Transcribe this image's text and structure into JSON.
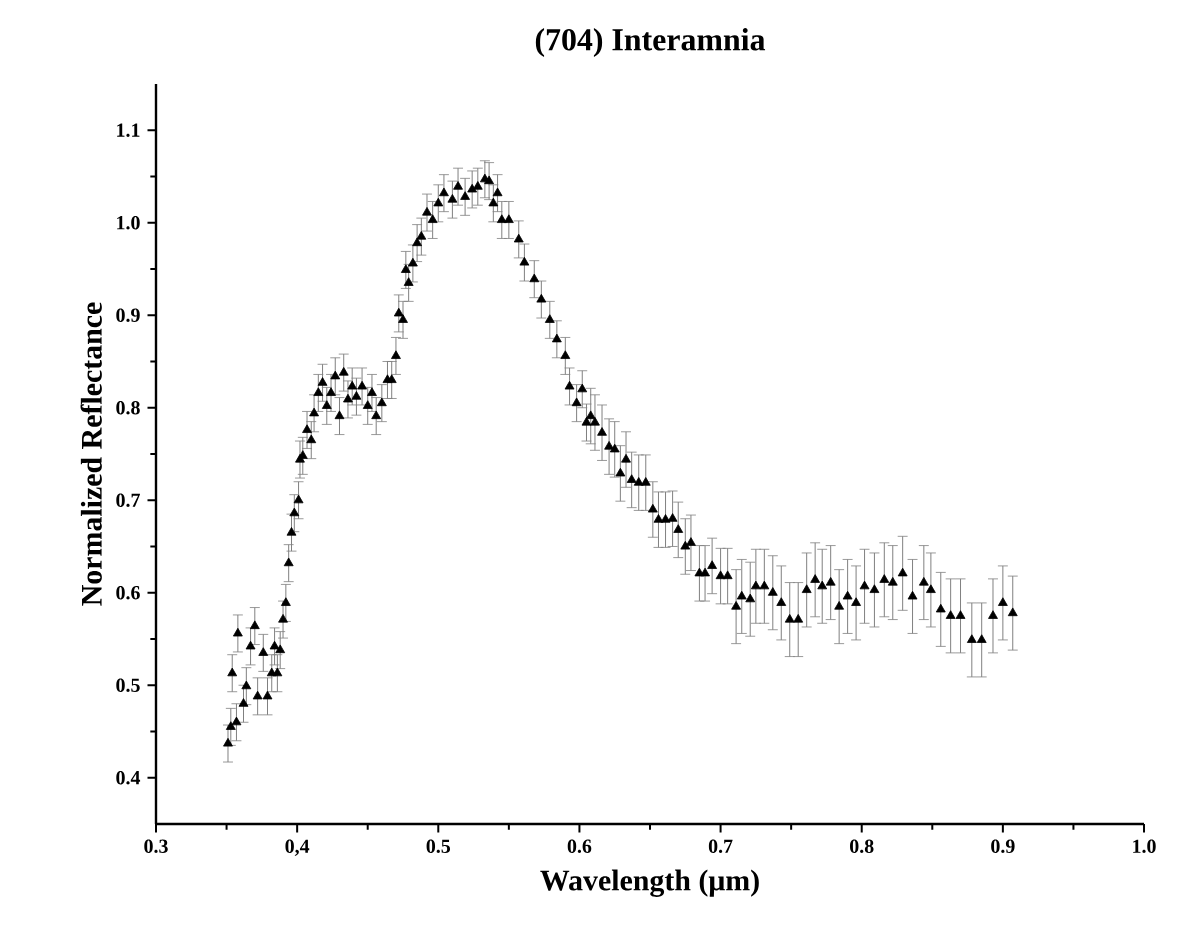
{
  "chart_data": {
    "type": "scatter",
    "title": "(704) Interamnia",
    "xlabel": "Wavelength (μm)",
    "ylabel": "Normalized Reflectance",
    "xlim": [
      0.3,
      1.0
    ],
    "ylim": [
      0.35,
      1.15
    ],
    "xticks": [
      0.3,
      {
        "value": 0.4,
        "label": "0,4"
      },
      0.5,
      0.6,
      0.7,
      0.8,
      0.9,
      {
        "value": 1,
        "label": "1.0"
      }
    ],
    "yticks": [
      0.4,
      0.5,
      0.6,
      0.7,
      0.8,
      0.9,
      {
        "value": 1,
        "label": "1.0"
      },
      1.1
    ],
    "marker": "triangle",
    "series": [
      {
        "color": "#000000",
        "x": [
          0.351,
          0.353,
          0.357,
          0.354,
          0.358,
          0.362,
          0.364,
          0.367,
          0.37,
          0.372,
          0.376,
          0.379,
          0.382,
          0.384,
          0.386,
          0.388,
          0.39,
          0.392,
          0.394,
          0.396,
          0.398,
          0.401,
          0.402,
          0.404,
          0.407,
          0.41,
          0.412,
          0.415,
          0.418,
          0.421,
          0.424,
          0.427,
          0.43,
          0.433,
          0.436,
          0.439,
          0.442,
          0.446,
          0.45,
          0.453,
          0.456,
          0.46,
          0.464,
          0.467,
          0.47,
          0.472,
          0.475,
          0.477,
          0.479,
          0.482,
          0.485,
          0.488,
          0.492,
          0.496,
          0.5,
          0.504,
          0.51,
          0.514,
          0.519,
          0.524,
          0.528,
          0.533,
          0.536,
          0.539,
          0.542,
          0.545,
          0.55,
          0.557,
          0.561,
          0.568,
          0.573,
          0.579,
          0.584,
          0.59,
          0.593,
          0.598,
          0.602,
          0.605,
          0.608,
          0.611,
          0.616,
          0.621,
          0.625,
          0.629,
          0.633,
          0.637,
          0.642,
          0.647,
          0.652,
          0.656,
          0.661,
          0.666,
          0.67,
          0.675,
          0.679,
          0.685,
          0.689,
          0.694,
          0.7,
          0.705,
          0.711,
          0.715,
          0.721,
          0.725,
          0.731,
          0.737,
          0.743,
          0.749,
          0.755,
          0.761,
          0.767,
          0.772,
          0.778,
          0.784,
          0.79,
          0.796,
          0.802,
          0.809,
          0.816,
          0.822,
          0.829,
          0.836,
          0.844,
          0.849,
          0.856,
          0.863,
          0.87,
          0.878,
          0.885,
          0.893,
          0.9,
          0.907
        ],
        "values": [
          0.437,
          0.455,
          0.46,
          0.513,
          0.556,
          0.48,
          0.499,
          0.542,
          0.564,
          0.488,
          0.535,
          0.488,
          0.513,
          0.542,
          0.513,
          0.538,
          0.571,
          0.589,
          0.632,
          0.665,
          0.686,
          0.7,
          0.744,
          0.748,
          0.776,
          0.765,
          0.794,
          0.816,
          0.827,
          0.802,
          0.816,
          0.834,
          0.791,
          0.838,
          0.809,
          0.823,
          0.812,
          0.823,
          0.802,
          0.816,
          0.791,
          0.805,
          0.83,
          0.83,
          0.856,
          0.902,
          0.895,
          0.949,
          0.935,
          0.956,
          0.978,
          0.985,
          1.011,
          1.003,
          1.021,
          1.032,
          1.025,
          1.039,
          1.028,
          1.036,
          1.039,
          1.047,
          1.045,
          1.021,
          1.032,
          1.003,
          1.003,
          0.982,
          0.957,
          0.939,
          0.917,
          0.895,
          0.874,
          0.856,
          0.823,
          0.805,
          0.82,
          0.784,
          0.791,
          0.784,
          0.773,
          0.758,
          0.755,
          0.729,
          0.744,
          0.722,
          0.719,
          0.719,
          0.69,
          0.679,
          0.679,
          0.68,
          0.668,
          0.65,
          0.654,
          0.621,
          0.621,
          0.629,
          0.618,
          0.618,
          0.585,
          0.596,
          0.593,
          0.607,
          0.607,
          0.6,
          0.589,
          0.571,
          0.571,
          0.603,
          0.614,
          0.607,
          0.611,
          0.585,
          0.596,
          0.589,
          0.607,
          0.603,
          0.614,
          0.611,
          0.621,
          0.596,
          0.611,
          0.603,
          0.582,
          0.575,
          0.575,
          0.549,
          0.549,
          0.575,
          0.589,
          0.578
        ],
        "errors": [
          0.02,
          0.02,
          0.02,
          0.02,
          0.02,
          0.02,
          0.02,
          0.02,
          0.02,
          0.02,
          0.02,
          0.02,
          0.02,
          0.02,
          0.02,
          0.02,
          0.02,
          0.02,
          0.02,
          0.02,
          0.02,
          0.02,
          0.02,
          0.02,
          0.02,
          0.02,
          0.02,
          0.02,
          0.02,
          0.02,
          0.02,
          0.02,
          0.02,
          0.02,
          0.02,
          0.02,
          0.02,
          0.02,
          0.02,
          0.02,
          0.02,
          0.02,
          0.02,
          0.02,
          0.02,
          0.02,
          0.02,
          0.02,
          0.02,
          0.02,
          0.02,
          0.02,
          0.02,
          0.02,
          0.02,
          0.02,
          0.02,
          0.02,
          0.02,
          0.02,
          0.02,
          0.02,
          0.02,
          0.02,
          0.02,
          0.02,
          0.02,
          0.02,
          0.02,
          0.02,
          0.02,
          0.02,
          0.02,
          0.02,
          0.02,
          0.02,
          0.02,
          0.02,
          0.03,
          0.03,
          0.03,
          0.03,
          0.03,
          0.03,
          0.03,
          0.03,
          0.03,
          0.03,
          0.03,
          0.03,
          0.03,
          0.03,
          0.03,
          0.03,
          0.03,
          0.03,
          0.03,
          0.03,
          0.03,
          0.03,
          0.04,
          0.04,
          0.04,
          0.04,
          0.04,
          0.04,
          0.04,
          0.04,
          0.04,
          0.04,
          0.04,
          0.04,
          0.04,
          0.04,
          0.04,
          0.04,
          0.04,
          0.04,
          0.04,
          0.04,
          0.04,
          0.04,
          0.04,
          0.04,
          0.04,
          0.04,
          0.04,
          0.04,
          0.04,
          0.04,
          0.04,
          0.04
        ]
      }
    ]
  }
}
